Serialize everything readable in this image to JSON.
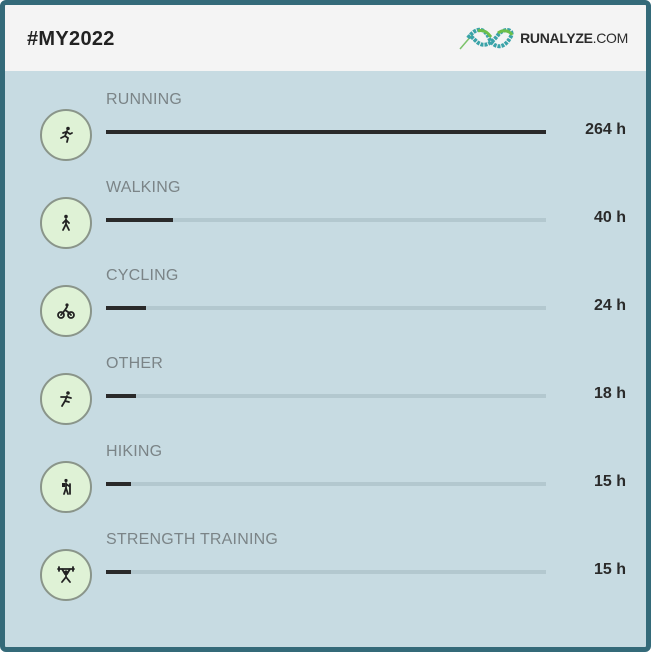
{
  "header": {
    "title": "#MY2022",
    "logo_text": "RUNALYZE",
    "logo_suffix": ".COM"
  },
  "colors": {
    "border": "#346a79",
    "body": "#c7dbe2",
    "header": "#f4f4f4",
    "icon_bg": "#dff2d6",
    "bar": "#2a2a2a",
    "track": "#b3c8cf"
  },
  "activities": [
    {
      "label": "RUNNING",
      "value": "264 h",
      "hours": 264,
      "icon": "running-icon"
    },
    {
      "label": "WALKING",
      "value": "40 h",
      "hours": 40,
      "icon": "walking-icon"
    },
    {
      "label": "CYCLING",
      "value": "24 h",
      "hours": 24,
      "icon": "cycling-icon"
    },
    {
      "label": "OTHER",
      "value": "18 h",
      "hours": 18,
      "icon": "other-sport-icon"
    },
    {
      "label": "HIKING",
      "value": "15 h",
      "hours": 15,
      "icon": "hiking-icon"
    },
    {
      "label": "STRENGTH TRAINING",
      "value": "15 h",
      "hours": 15,
      "icon": "weightlifting-icon"
    }
  ]
}
